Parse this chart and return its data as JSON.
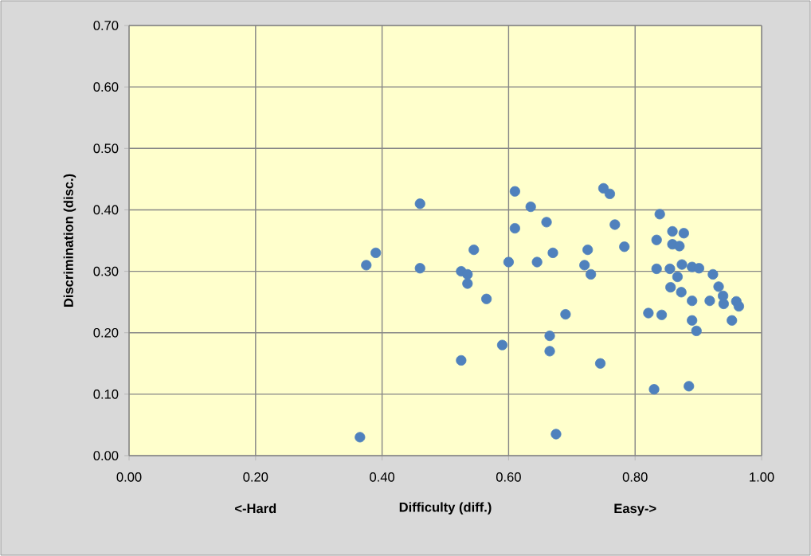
{
  "chart_data": {
    "type": "scatter",
    "xlabel": "Difficulty (diff.)",
    "ylabel": "Discrimination  (disc.)",
    "annotations": [
      "<-Hard",
      "Easy->"
    ],
    "xlim": [
      0,
      1
    ],
    "ylim": [
      0,
      0.7
    ],
    "xticks": [
      {
        "value": 0,
        "label": "0.00"
      },
      {
        "value": 0.2,
        "label": "0.20"
      },
      {
        "value": 0.4,
        "label": "0.40"
      },
      {
        "value": 0.6,
        "label": "0.60"
      },
      {
        "value": 0.8,
        "label": "0.80"
      },
      {
        "value": 1,
        "label": "1.00"
      }
    ],
    "yticks": [
      {
        "value": 0,
        "label": "0.00"
      },
      {
        "value": 0.1,
        "label": "0.10"
      },
      {
        "value": 0.2,
        "label": "0.20"
      },
      {
        "value": 0.3,
        "label": "0.30"
      },
      {
        "value": 0.4,
        "label": "0.40"
      },
      {
        "value": 0.5,
        "label": "0.50"
      },
      {
        "value": 0.6,
        "label": "0.60"
      },
      {
        "value": 0.7,
        "label": "0.70"
      }
    ],
    "grid": true,
    "marker": "circle",
    "series": [
      {
        "color": "#4f81bd",
        "x": [
          0.365,
          0.375,
          0.39,
          0.46,
          0.46,
          0.525,
          0.525,
          0.535,
          0.535,
          0.545,
          0.565,
          0.59,
          0.6,
          0.61,
          0.61,
          0.635,
          0.645,
          0.66,
          0.665,
          0.665,
          0.67,
          0.675,
          0.69,
          0.72,
          0.725,
          0.73,
          0.745,
          0.75,
          0.76,
          0.768,
          0.783,
          0.839,
          0.834,
          0.859,
          0.877,
          0.859,
          0.87,
          0.834,
          0.855,
          0.874,
          0.89,
          0.901,
          0.867,
          0.923,
          0.856,
          0.873,
          0.932,
          0.89,
          0.918,
          0.939,
          0.94,
          0.96,
          0.964,
          0.821,
          0.842,
          0.89,
          0.897,
          0.953,
          0.83,
          0.885
        ],
        "values": [
          0.03,
          0.31,
          0.33,
          0.41,
          0.305,
          0.155,
          0.3,
          0.295,
          0.28,
          0.335,
          0.255,
          0.18,
          0.315,
          0.43,
          0.37,
          0.405,
          0.315,
          0.38,
          0.195,
          0.17,
          0.33,
          0.035,
          0.23,
          0.31,
          0.335,
          0.295,
          0.15,
          0.435,
          0.426,
          0.376,
          0.34,
          0.393,
          0.351,
          0.365,
          0.362,
          0.344,
          0.341,
          0.304,
          0.304,
          0.311,
          0.307,
          0.305,
          0.291,
          0.295,
          0.274,
          0.266,
          0.275,
          0.252,
          0.252,
          0.26,
          0.247,
          0.251,
          0.243,
          0.232,
          0.229,
          0.22,
          0.203,
          0.22,
          0.108,
          0.113
        ]
      }
    ]
  }
}
